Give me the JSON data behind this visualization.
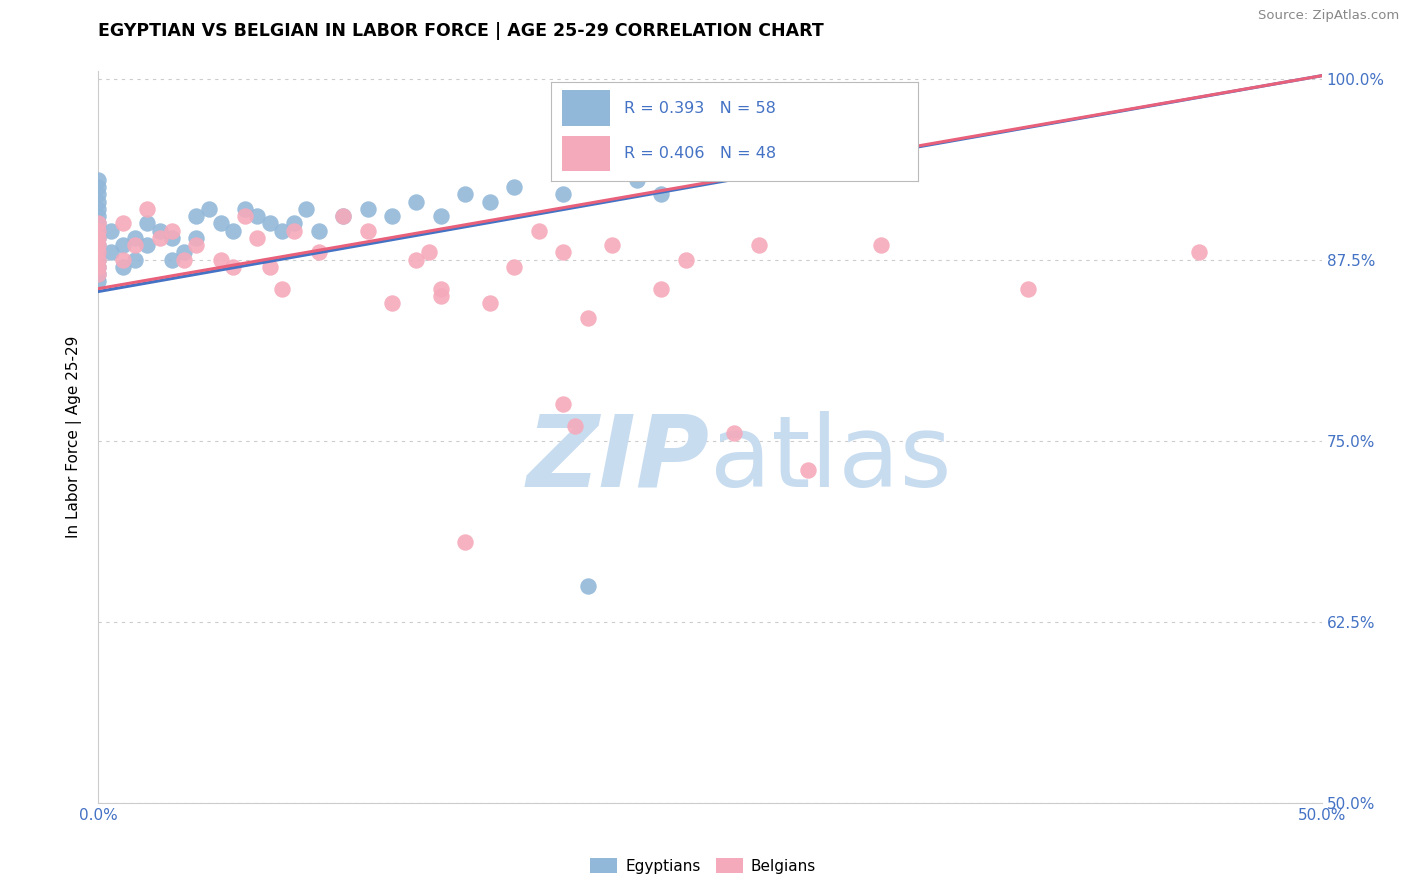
{
  "title": "EGYPTIAN VS BELGIAN IN LABOR FORCE | AGE 25-29 CORRELATION CHART",
  "source": "Source: ZipAtlas.com",
  "ylabel": "In Labor Force | Age 25-29",
  "xlim": [
    0.0,
    0.5
  ],
  "ylim": [
    0.5,
    1.005
  ],
  "xtick_vals": [
    0.0,
    0.05,
    0.1,
    0.15,
    0.2,
    0.25,
    0.3,
    0.35,
    0.4,
    0.45,
    0.5
  ],
  "xticklabels": [
    "0.0%",
    "",
    "",
    "",
    "",
    "",
    "",
    "",
    "",
    "",
    "50.0%"
  ],
  "yticks": [
    0.5,
    0.625,
    0.75,
    0.875,
    1.0
  ],
  "yticklabels": [
    "50.0%",
    "62.5%",
    "75.0%",
    "87.5%",
    "100.0%"
  ],
  "tick_color": "#4472c4",
  "R_egyptian": 0.393,
  "N_egyptian": 58,
  "R_belgian": 0.406,
  "N_belgian": 48,
  "egyptian_color": "#92B8D9",
  "belgian_color": "#F5AABB",
  "egyptian_line_color": "#4472c4",
  "belgian_line_color": "#E8607A",
  "watermark_zip": "ZIP",
  "watermark_atlas": "atlas",
  "watermark_color": "#C8DCF0",
  "eg_line_x0": 0.0,
  "eg_line_y0": 0.853,
  "eg_line_x1": 0.5,
  "eg_line_y1": 1.002,
  "be_line_x0": 0.0,
  "be_line_y0": 0.855,
  "be_line_x1": 0.5,
  "be_line_y1": 1.002,
  "egyptian_x": [
    0.0,
    0.0,
    0.0,
    0.0,
    0.0,
    0.0,
    0.0,
    0.0,
    0.0,
    0.0,
    0.0,
    0.0,
    0.0,
    0.0,
    0.0,
    0.005,
    0.005,
    0.01,
    0.01,
    0.015,
    0.015,
    0.02,
    0.02,
    0.025,
    0.03,
    0.03,
    0.035,
    0.04,
    0.04,
    0.045,
    0.05,
    0.055,
    0.06,
    0.065,
    0.07,
    0.075,
    0.08,
    0.085,
    0.09,
    0.1,
    0.11,
    0.12,
    0.13,
    0.14,
    0.15,
    0.16,
    0.17,
    0.19,
    0.2,
    0.21,
    0.22,
    0.23,
    0.24,
    0.25,
    0.27,
    0.28,
    0.3,
    0.33
  ],
  "egyptian_y": [
    0.885,
    0.89,
    0.895,
    0.9,
    0.905,
    0.91,
    0.915,
    0.92,
    0.925,
    0.93,
    0.88,
    0.875,
    0.87,
    0.865,
    0.86,
    0.88,
    0.895,
    0.885,
    0.87,
    0.89,
    0.875,
    0.9,
    0.885,
    0.895,
    0.89,
    0.875,
    0.88,
    0.905,
    0.89,
    0.91,
    0.9,
    0.895,
    0.91,
    0.905,
    0.9,
    0.895,
    0.9,
    0.91,
    0.895,
    0.905,
    0.91,
    0.905,
    0.915,
    0.905,
    0.92,
    0.915,
    0.925,
    0.92,
    0.65,
    0.94,
    0.93,
    0.92,
    0.935,
    0.935,
    0.945,
    0.94,
    0.95,
    0.97
  ],
  "belgian_x": [
    0.0,
    0.0,
    0.0,
    0.0,
    0.0,
    0.0,
    0.0,
    0.0,
    0.01,
    0.01,
    0.015,
    0.02,
    0.025,
    0.03,
    0.035,
    0.04,
    0.05,
    0.055,
    0.06,
    0.065,
    0.07,
    0.075,
    0.08,
    0.09,
    0.1,
    0.11,
    0.12,
    0.13,
    0.135,
    0.14,
    0.16,
    0.17,
    0.18,
    0.19,
    0.195,
    0.21,
    0.23,
    0.24,
    0.26,
    0.27,
    0.29,
    0.32,
    0.38,
    0.45,
    0.2,
    0.14,
    0.19,
    0.15
  ],
  "belgian_y": [
    0.885,
    0.89,
    0.895,
    0.9,
    0.88,
    0.875,
    0.87,
    0.865,
    0.9,
    0.875,
    0.885,
    0.91,
    0.89,
    0.895,
    0.875,
    0.885,
    0.875,
    0.87,
    0.905,
    0.89,
    0.87,
    0.855,
    0.895,
    0.88,
    0.905,
    0.895,
    0.845,
    0.875,
    0.88,
    0.855,
    0.845,
    0.87,
    0.895,
    0.88,
    0.76,
    0.885,
    0.855,
    0.875,
    0.755,
    0.885,
    0.73,
    0.885,
    0.855,
    0.88,
    0.835,
    0.85,
    0.775,
    0.68
  ]
}
